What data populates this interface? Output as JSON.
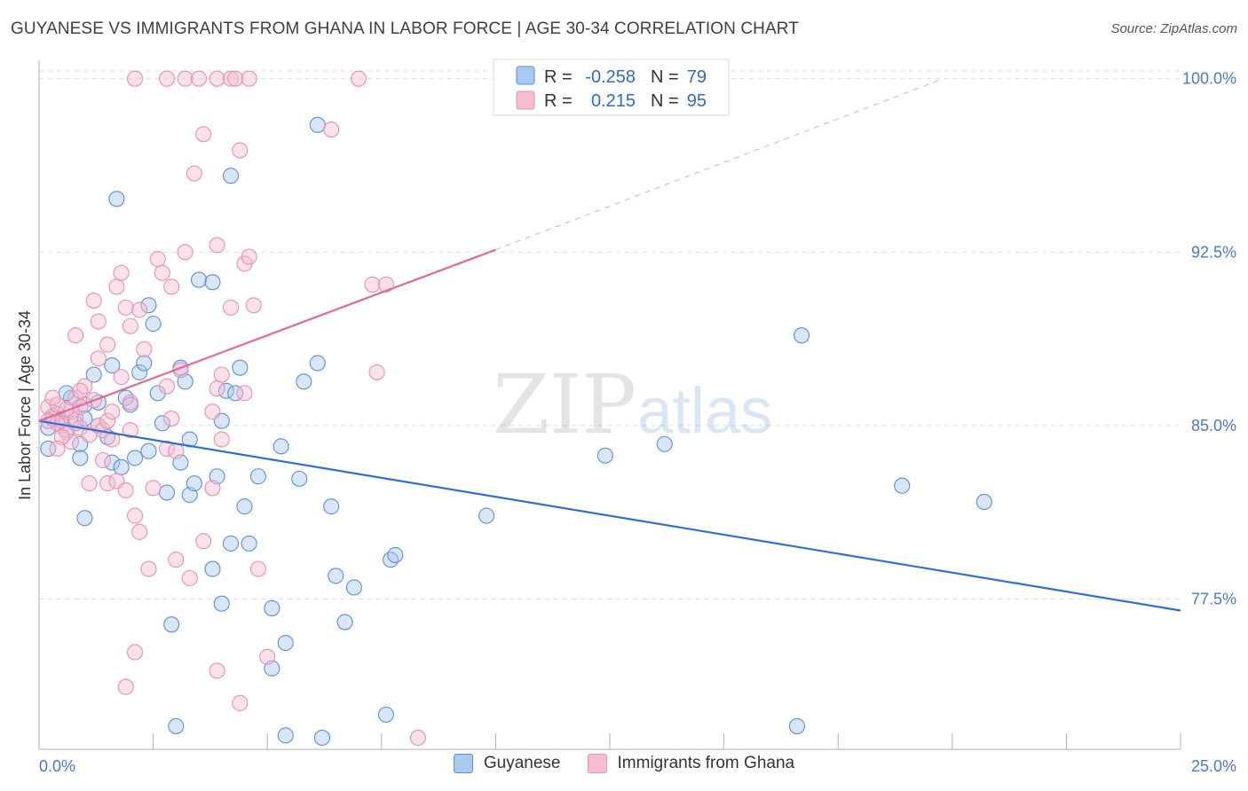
{
  "header": {
    "title": "GUYANESE VS IMMIGRANTS FROM GHANA IN LABOR FORCE | AGE 30-34 CORRELATION CHART",
    "source": "Source: ZipAtlas.com"
  },
  "watermark": {
    "zip": "ZIP",
    "atlas": "atlas"
  },
  "legend_box": {
    "rows": [
      {
        "r_label": "R =",
        "r_value": "-0.258",
        "n_label": "N =",
        "n_value": "79"
      },
      {
        "r_label": "R =",
        "r_value": "0.215",
        "n_label": "N =",
        "n_value": "95"
      }
    ]
  },
  "bottom_legend": {
    "items": [
      {
        "label": "Guyanese",
        "color": "#aac8f0"
      },
      {
        "label": "Immigrants from Ghana",
        "color": "#f6bcd0"
      }
    ]
  },
  "chart_data": {
    "type": "scatter",
    "ylabel": "In Labor Force | Age 30-34",
    "xlabel": "",
    "xlim": [
      0,
      25
    ],
    "ylim": [
      71,
      101.1
    ],
    "x_tick_labels": [
      {
        "value": 0,
        "label": "0.0%"
      },
      {
        "value": 25,
        "label": "25.0%"
      }
    ],
    "y_tick_labels": [
      {
        "value": 100,
        "label": "100.0%"
      },
      {
        "value": 92.5,
        "label": "92.5%"
      },
      {
        "value": 85,
        "label": "85.0%"
      },
      {
        "value": 77.5,
        "label": "77.5%"
      }
    ],
    "grid": true,
    "series": [
      {
        "name": "Guyanese",
        "stroke": "#5b8fd9",
        "fill": "#aac8f0",
        "line_color": "#2f6fd3",
        "r": -0.258,
        "n": 79,
        "trend": {
          "x0": 0.0,
          "y0": 85.2,
          "x1": 25.0,
          "y1": 77.0
        },
        "points": [
          [
            0.2,
            84.9
          ],
          [
            0.3,
            85.3
          ],
          [
            0.4,
            85.5
          ],
          [
            0.5,
            85.2
          ],
          [
            0.6,
            84.8
          ],
          [
            0.2,
            84.0
          ],
          [
            0.7,
            86.2
          ],
          [
            0.6,
            86.4
          ],
          [
            0.8,
            85.1
          ],
          [
            0.9,
            83.6
          ],
          [
            0.9,
            84.2
          ],
          [
            1.0,
            85.9
          ],
          [
            1.0,
            85.3
          ],
          [
            1.2,
            87.2
          ],
          [
            1.3,
            86.0
          ],
          [
            1.3,
            85.0
          ],
          [
            1.5,
            84.5
          ],
          [
            1.6,
            83.4
          ],
          [
            1.6,
            87.6
          ],
          [
            1.8,
            83.2
          ],
          [
            1.9,
            86.2
          ],
          [
            2.0,
            85.9
          ],
          [
            2.1,
            83.6
          ],
          [
            2.2,
            87.3
          ],
          [
            2.3,
            87.7
          ],
          [
            2.4,
            90.2
          ],
          [
            2.5,
            89.4
          ],
          [
            2.4,
            83.9
          ],
          [
            2.6,
            86.4
          ],
          [
            2.7,
            85.1
          ],
          [
            2.8,
            82.1
          ],
          [
            3.1,
            83.4
          ],
          [
            3.1,
            87.5
          ],
          [
            3.2,
            86.9
          ],
          [
            3.3,
            84.4
          ],
          [
            3.3,
            82.0
          ],
          [
            3.4,
            82.5
          ],
          [
            3.5,
            91.3
          ],
          [
            3.8,
            91.2
          ],
          [
            3.8,
            78.8
          ],
          [
            3.9,
            82.8
          ],
          [
            4.0,
            85.2
          ],
          [
            4.1,
            86.5
          ],
          [
            4.3,
            86.4
          ],
          [
            4.4,
            87.5
          ],
          [
            4.2,
            79.9
          ],
          [
            4.5,
            81.5
          ],
          [
            4.6,
            79.9
          ],
          [
            4.0,
            77.3
          ],
          [
            4.2,
            95.8
          ],
          [
            1.7,
            94.8
          ],
          [
            1.0,
            81.0
          ],
          [
            2.9,
            76.4
          ],
          [
            3.0,
            72.0
          ],
          [
            5.3,
            84.1
          ],
          [
            5.7,
            82.7
          ],
          [
            5.8,
            86.9
          ],
          [
            6.1,
            87.7
          ],
          [
            6.4,
            81.5
          ],
          [
            6.5,
            78.5
          ],
          [
            6.7,
            76.5
          ],
          [
            6.9,
            78.0
          ],
          [
            7.7,
            79.2
          ],
          [
            7.8,
            79.4
          ],
          [
            5.1,
            77.1
          ],
          [
            5.4,
            75.6
          ],
          [
            5.1,
            74.5
          ],
          [
            5.4,
            71.6
          ],
          [
            6.2,
            71.5
          ],
          [
            7.6,
            72.5
          ],
          [
            6.1,
            98.0
          ],
          [
            9.8,
            81.1
          ],
          [
            12.4,
            83.7
          ],
          [
            13.7,
            84.2
          ],
          [
            16.7,
            88.9
          ],
          [
            18.9,
            82.4
          ],
          [
            20.7,
            81.7
          ],
          [
            16.6,
            72.0
          ],
          [
            4.8,
            82.8
          ]
        ]
      },
      {
        "name": "Immigrants from Ghana",
        "stroke": "#e890ae",
        "fill": "#f6bcd0",
        "line_color": "#e06a94",
        "r": 0.215,
        "n": 95,
        "trend": {
          "x0": 0.0,
          "y0": 85.2,
          "x1": 10.0,
          "y1": 92.6
        },
        "trend_dashed": {
          "x0": 10.0,
          "y0": 92.6,
          "x1": 19.8,
          "y1": 100.0
        },
        "points": [
          [
            0.2,
            85.8
          ],
          [
            0.3,
            85.4
          ],
          [
            0.4,
            85.9
          ],
          [
            0.5,
            85.0
          ],
          [
            0.6,
            84.7
          ],
          [
            0.7,
            85.6
          ],
          [
            0.8,
            86.2
          ],
          [
            0.8,
            85.3
          ],
          [
            0.9,
            84.9
          ],
          [
            1.0,
            86.7
          ],
          [
            1.1,
            84.6
          ],
          [
            1.2,
            86.1
          ],
          [
            1.3,
            85.0
          ],
          [
            1.4,
            84.8
          ],
          [
            1.5,
            85.2
          ],
          [
            1.6,
            84.4
          ],
          [
            0.3,
            86.2
          ],
          [
            0.4,
            85.1
          ],
          [
            0.6,
            85.7
          ],
          [
            0.9,
            86.5
          ],
          [
            1.2,
            90.4
          ],
          [
            1.3,
            89.5
          ],
          [
            1.5,
            88.5
          ],
          [
            1.7,
            91.0
          ],
          [
            1.8,
            91.6
          ],
          [
            1.9,
            90.1
          ],
          [
            2.0,
            89.3
          ],
          [
            2.2,
            90.0
          ],
          [
            2.3,
            88.3
          ],
          [
            2.6,
            92.2
          ],
          [
            2.7,
            91.6
          ],
          [
            2.9,
            91.0
          ],
          [
            3.2,
            92.5
          ],
          [
            3.4,
            95.9
          ],
          [
            3.6,
            97.6
          ],
          [
            3.9,
            92.8
          ],
          [
            4.0,
            87.2
          ],
          [
            4.2,
            90.1
          ],
          [
            4.4,
            96.9
          ],
          [
            4.5,
            92.0
          ],
          [
            4.6,
            92.3
          ],
          [
            4.7,
            90.2
          ],
          [
            1.5,
            82.5
          ],
          [
            1.7,
            82.6
          ],
          [
            1.9,
            82.2
          ],
          [
            2.1,
            81.1
          ],
          [
            2.2,
            80.4
          ],
          [
            2.4,
            78.8
          ],
          [
            2.5,
            82.3
          ],
          [
            2.8,
            84.0
          ],
          [
            3.0,
            79.2
          ],
          [
            3.3,
            78.4
          ],
          [
            3.6,
            80.0
          ],
          [
            3.8,
            82.3
          ],
          [
            4.0,
            84.4
          ],
          [
            4.4,
            73.0
          ],
          [
            4.8,
            78.8
          ],
          [
            5.0,
            75.0
          ],
          [
            3.9,
            74.4
          ],
          [
            2.1,
            75.2
          ],
          [
            1.9,
            73.7
          ],
          [
            2.1,
            100.0
          ],
          [
            2.8,
            100.0
          ],
          [
            3.2,
            100.0
          ],
          [
            3.5,
            100.0
          ],
          [
            3.9,
            100.0
          ],
          [
            4.2,
            100.0
          ],
          [
            4.3,
            100.0
          ],
          [
            4.6,
            100.0
          ],
          [
            7.0,
            100.0
          ],
          [
            6.4,
            97.8
          ],
          [
            7.3,
            91.1
          ],
          [
            7.6,
            91.1
          ],
          [
            7.4,
            87.3
          ],
          [
            8.3,
            71.5
          ],
          [
            3.8,
            85.6
          ],
          [
            3.9,
            86.6
          ],
          [
            2.8,
            86.7
          ],
          [
            2.9,
            85.3
          ],
          [
            3.0,
            83.9
          ],
          [
            2.0,
            84.8
          ],
          [
            1.4,
            83.5
          ],
          [
            1.1,
            82.5
          ],
          [
            0.9,
            85.8
          ],
          [
            0.7,
            84.3
          ],
          [
            0.5,
            84.5
          ],
          [
            1.6,
            85.6
          ],
          [
            2.0,
            86.0
          ],
          [
            3.1,
            87.4
          ],
          [
            1.8,
            87.1
          ],
          [
            0.8,
            88.9
          ],
          [
            1.3,
            87.9
          ],
          [
            0.4,
            84.0
          ],
          [
            0.2,
            85.2
          ],
          [
            4.5,
            86.4
          ]
        ]
      }
    ]
  }
}
